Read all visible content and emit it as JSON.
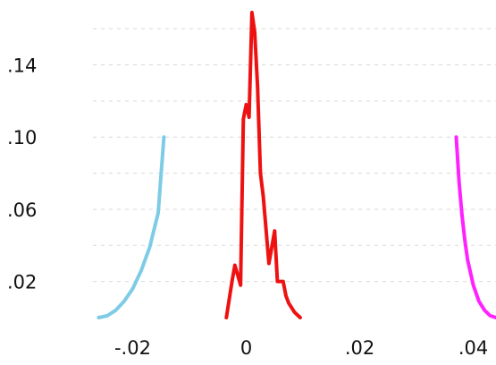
{
  "chart_data": {
    "type": "line",
    "title": "",
    "xlabel": "",
    "ylabel": "",
    "xlim": [
      -0.027,
      0.044
    ],
    "ylim": [
      0.0,
      0.17
    ],
    "grid": "horizontal dashed",
    "legend": "none",
    "x_ticks": [
      {
        "value": -0.02,
        "label": "-.02"
      },
      {
        "value": 0.0,
        "label": "0"
      },
      {
        "value": 0.02,
        "label": ".02"
      },
      {
        "value": 0.04,
        "label": ".04"
      }
    ],
    "y_ticks": [
      {
        "value": 0.02,
        "label": ".02"
      },
      {
        "value": 0.06,
        "label": ".06"
      },
      {
        "value": 0.1,
        "label": ".10"
      },
      {
        "value": 0.14,
        "label": ".14"
      }
    ],
    "y_gridlines": [
      0.02,
      0.04,
      0.06,
      0.08,
      0.1,
      0.12,
      0.14,
      0.16
    ],
    "series": [
      {
        "color": "#7ecbe6",
        "x": [
          -0.026,
          -0.0245,
          -0.023,
          -0.0215,
          -0.02,
          -0.0185,
          -0.017,
          -0.0155,
          -0.0145
        ],
        "y": [
          0.0,
          0.001,
          0.004,
          0.009,
          0.016,
          0.026,
          0.039,
          0.058,
          0.1
        ]
      },
      {
        "color": "#ee1111",
        "x": [
          -0.0035,
          -0.0025,
          -0.002,
          -0.001,
          -0.0005,
          0.0,
          0.0005,
          0.001,
          0.0015,
          0.002,
          0.0025,
          0.003,
          0.004,
          0.005,
          0.0055,
          0.0065,
          0.007,
          0.0075,
          0.0085,
          0.0095
        ],
        "y": [
          0.0,
          0.02,
          0.029,
          0.018,
          0.11,
          0.118,
          0.111,
          0.169,
          0.158,
          0.128,
          0.08,
          0.067,
          0.03,
          0.048,
          0.02,
          0.02,
          0.012,
          0.008,
          0.003,
          0.0
        ]
      },
      {
        "color": "#ff22ff",
        "x": [
          0.037,
          0.0375,
          0.038,
          0.0385,
          0.039,
          0.04,
          0.041,
          0.042,
          0.043,
          0.044
        ],
        "y": [
          0.1,
          0.075,
          0.057,
          0.043,
          0.032,
          0.018,
          0.009,
          0.004,
          0.001,
          0.0
        ]
      }
    ]
  }
}
